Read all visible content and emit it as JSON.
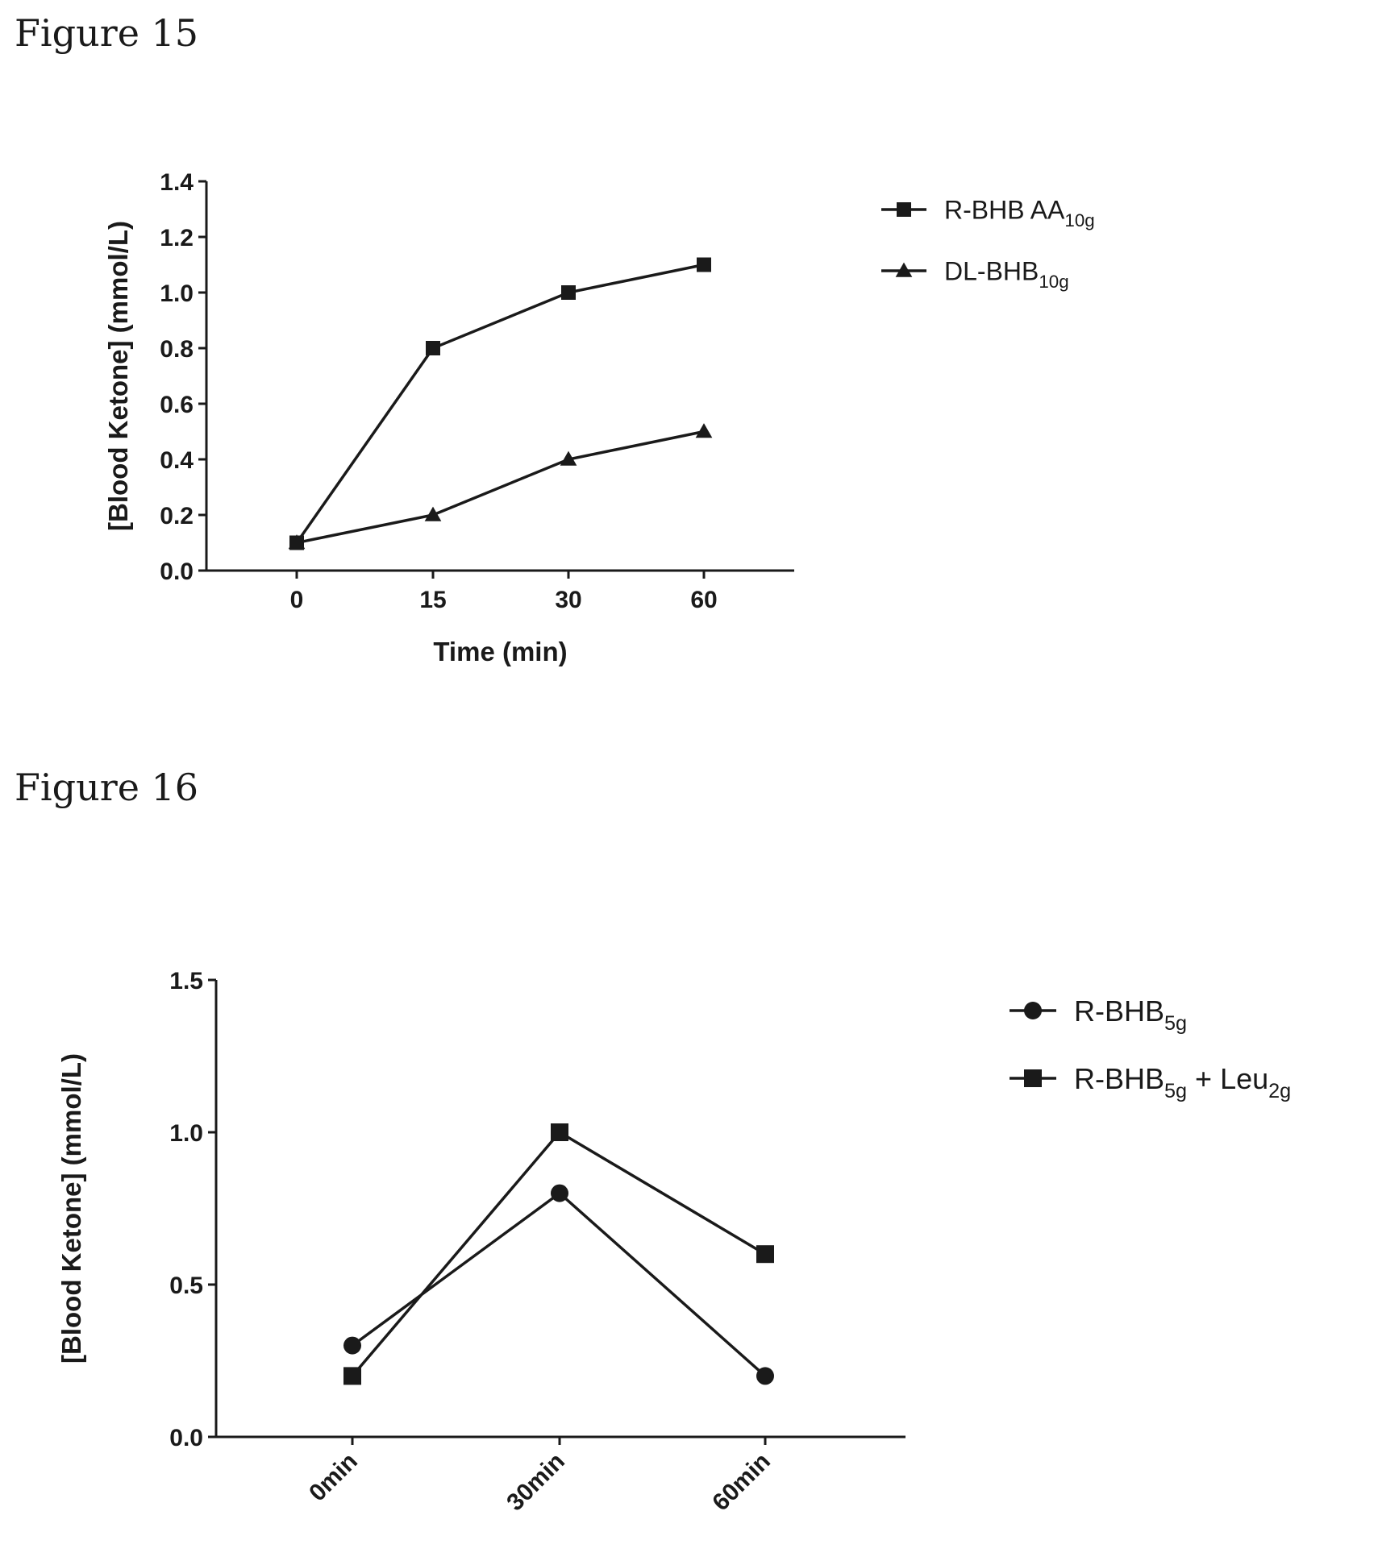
{
  "figures": [
    {
      "heading": "Figure 15",
      "chart_data": {
        "type": "line",
        "categories": [
          "0",
          "15",
          "30",
          "60"
        ],
        "series": [
          {
            "name": "R-BHB AA",
            "subscript": "10g",
            "marker": "square",
            "values": [
              0.1,
              0.8,
              1.0,
              1.1
            ]
          },
          {
            "name": "DL-BHB",
            "subscript": "10g",
            "marker": "triangle",
            "values": [
              0.1,
              0.2,
              0.4,
              0.5
            ]
          }
        ],
        "xlabel": "Time (min)",
        "ylabel": "[Blood Ketone] (mmol/L)",
        "ylim": [
          0,
          1.4
        ],
        "yticks": [
          "0.0",
          "0.2",
          "0.4",
          "0.6",
          "0.8",
          "1.0",
          "1.2",
          "1.4"
        ],
        "legend": "right",
        "grid": false
      }
    },
    {
      "heading": "Figure 16",
      "chart_data": {
        "type": "line",
        "categories": [
          "0min",
          "30min",
          "60min"
        ],
        "series": [
          {
            "name": "R-BHB",
            "subscript": "5g",
            "marker": "circle",
            "values": [
              0.3,
              0.8,
              0.2
            ]
          },
          {
            "name": "R-BHB",
            "subscript": "5g",
            "suffix": " + Leu",
            "suffix_subscript": "2g",
            "marker": "square",
            "values": [
              0.2,
              1.0,
              0.6
            ]
          }
        ],
        "xlabel": "",
        "ylabel": "[Blood Ketone]  (mmol/L)",
        "ylim": [
          0,
          1.5
        ],
        "yticks": [
          "0.0",
          "0.5",
          "1.0",
          "1.5"
        ],
        "xtick_rotation": "-45",
        "legend": "right",
        "grid": false
      }
    }
  ]
}
